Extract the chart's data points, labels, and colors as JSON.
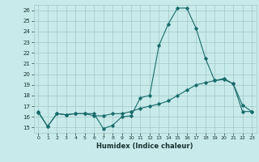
{
  "xlabel": "Humidex (Indice chaleur)",
  "background_color": "#c8eaea",
  "grid_color": "#a0c8c8",
  "line_color": "#1a6b6b",
  "xlim": [
    -0.5,
    23.5
  ],
  "ylim": [
    14.5,
    26.5
  ],
  "yticks": [
    15,
    16,
    17,
    18,
    19,
    20,
    21,
    22,
    23,
    24,
    25,
    26
  ],
  "xticks": [
    0,
    1,
    2,
    3,
    4,
    5,
    6,
    7,
    8,
    9,
    10,
    11,
    12,
    13,
    14,
    15,
    16,
    17,
    18,
    19,
    20,
    21,
    22,
    23
  ],
  "line1_x": [
    0,
    1,
    2,
    3,
    4,
    5,
    6,
    7,
    8,
    9,
    10,
    11,
    12,
    13,
    14,
    15,
    16,
    17,
    18,
    19,
    20,
    21,
    22,
    23
  ],
  "line1_y": [
    16.5,
    15.1,
    16.3,
    16.2,
    16.3,
    16.3,
    16.3,
    14.9,
    15.2,
    16.0,
    16.1,
    17.8,
    18.0,
    22.7,
    24.7,
    26.2,
    26.2,
    24.3,
    21.5,
    19.4,
    19.6,
    19.1,
    17.1,
    16.5
  ],
  "line2_x": [
    0,
    1,
    2,
    3,
    4,
    5,
    6,
    7,
    8,
    9,
    10,
    11,
    12,
    13,
    14,
    15,
    16,
    17,
    18,
    19,
    20,
    21,
    22,
    23
  ],
  "line2_y": [
    16.4,
    15.1,
    16.3,
    16.2,
    16.3,
    16.3,
    16.1,
    16.1,
    16.3,
    16.3,
    16.5,
    16.8,
    17.0,
    17.2,
    17.5,
    18.0,
    18.5,
    19.0,
    19.2,
    19.4,
    19.5,
    19.1,
    16.5,
    16.5
  ]
}
